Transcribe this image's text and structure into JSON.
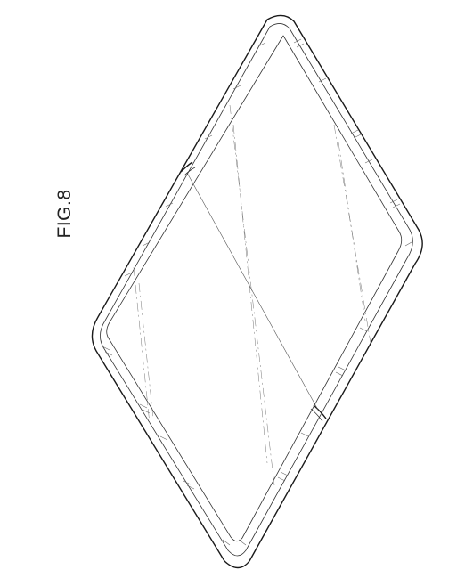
{
  "figure": {
    "label": "FIG.8"
  },
  "drawing": {
    "subject": "folding-device-line-drawing",
    "line_color": "#1a1a1a",
    "background": "#ffffff"
  }
}
